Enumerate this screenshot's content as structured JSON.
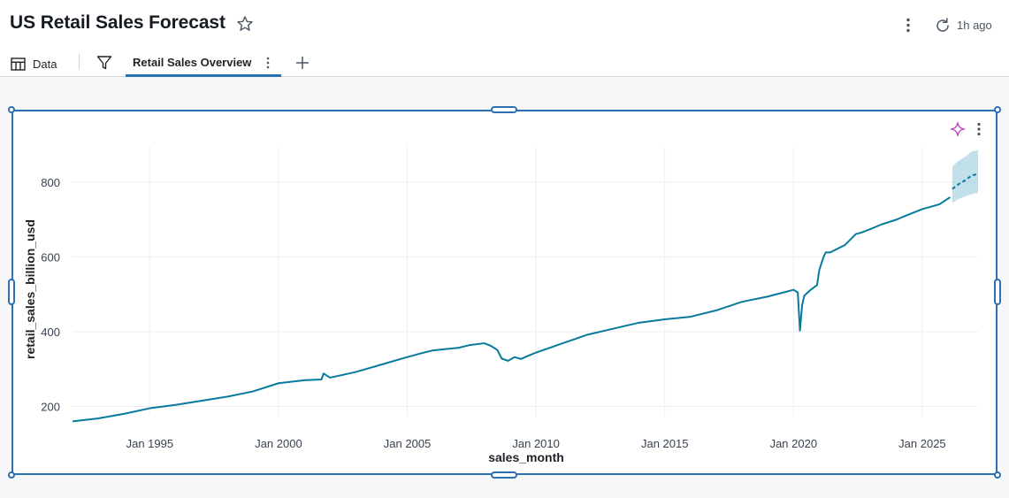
{
  "header": {
    "title": "US Retail Sales Forecast",
    "updated": "1h ago",
    "star_icon": "star-outline-icon",
    "more_icon": "kebab-vertical-icon",
    "refresh_icon": "refresh-icon"
  },
  "tabs": {
    "data_label": "Data",
    "data_icon": "table-icon",
    "filter_icon": "filter-icon",
    "active_label": "Retail Sales Overview",
    "add_icon": "plus-icon"
  },
  "widget": {
    "assistant_icon": "sparkle-icon",
    "more_icon": "kebab-vertical-icon"
  },
  "chart_data": {
    "type": "line",
    "xlabel": "sales_month",
    "ylabel": "retail_sales_billion_usd",
    "x_tick_labels": [
      "Jan 1995",
      "Jan 2000",
      "Jan 2005",
      "Jan 2010",
      "Jan 2015",
      "Jan 2020",
      "Jan 2025"
    ],
    "y_tick_labels": [
      "200",
      "400",
      "600",
      "800"
    ],
    "xlim": [
      "1992-01",
      "2027-03"
    ],
    "ylim": [
      175,
      890
    ],
    "grid": true,
    "colors": {
      "line": "#077a9d",
      "band": "#8ec7d9"
    },
    "series": [
      {
        "role": "actual",
        "x": [
          "1992-01",
          "1993-01",
          "1994-01",
          "1995-01",
          "1996-01",
          "1997-01",
          "1998-01",
          "1999-01",
          "2000-01",
          "2001-01",
          "2001-09",
          "2001-10",
          "2002-01",
          "2003-01",
          "2004-01",
          "2005-01",
          "2005-08",
          "2006-01",
          "2007-01",
          "2007-06",
          "2008-01",
          "2008-04",
          "2008-07",
          "2008-09",
          "2008-12",
          "2009-03",
          "2009-06",
          "2009-10",
          "2010-01",
          "2011-01",
          "2012-01",
          "2013-01",
          "2014-01",
          "2015-01",
          "2016-01",
          "2017-01",
          "2018-01",
          "2019-01",
          "2020-01",
          "2020-03",
          "2020-04",
          "2020-05",
          "2020-06",
          "2020-09",
          "2020-12",
          "2021-01",
          "2021-03",
          "2021-04",
          "2021-06",
          "2022-01",
          "2022-06",
          "2022-09",
          "2023-01",
          "2023-06",
          "2024-01",
          "2024-06",
          "2025-01",
          "2025-09",
          "2026-02"
        ],
        "values": [
          160,
          168,
          180,
          195,
          204,
          215,
          226,
          240,
          262,
          270,
          272,
          288,
          277,
          292,
          312,
          332,
          343,
          350,
          357,
          364,
          369,
          362,
          351,
          328,
          322,
          332,
          327,
          337,
          344,
          368,
          392,
          408,
          424,
          433,
          440,
          457,
          480,
          494,
          512,
          505,
          403,
          470,
          496,
          512,
          525,
          565,
          600,
          612,
          612,
          632,
          661,
          666,
          675,
          687,
          700,
          712,
          728,
          741,
          760
        ]
      },
      {
        "role": "forecast",
        "x": [
          "2026-03",
          "2026-06",
          "2026-09",
          "2026-12",
          "2027-03"
        ],
        "values": [
          782,
          795,
          805,
          818,
          822
        ],
        "lower": [
          745,
          755,
          762,
          768,
          772
        ],
        "upper": [
          842,
          858,
          868,
          882,
          886
        ]
      }
    ]
  }
}
